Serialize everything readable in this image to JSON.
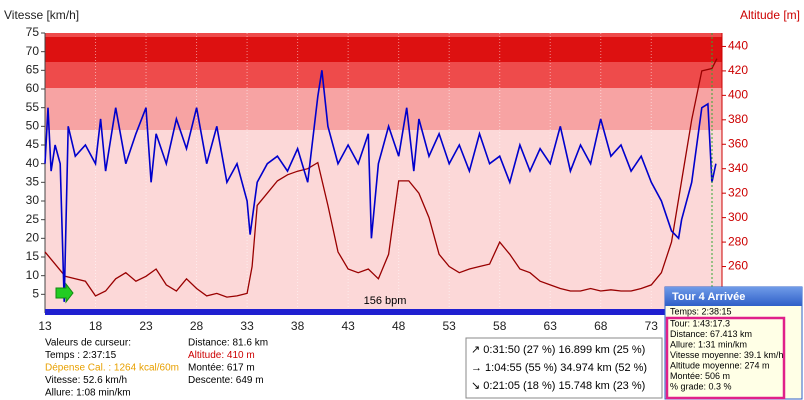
{
  "chart_data": {
    "type": "line",
    "ylabel": "Vitesse [km/h]",
    "y2label": "Altitude [m]",
    "xlim": [
      13,
      80
    ],
    "xticks": [
      13,
      18,
      23,
      28,
      33,
      38,
      43,
      48,
      53,
      58,
      63,
      68,
      73
    ],
    "ylim": [
      0,
      75
    ],
    "yticks": [
      5,
      10,
      15,
      20,
      25,
      30,
      35,
      40,
      45,
      50,
      55,
      60,
      65,
      70,
      75
    ],
    "y2lim": [
      222,
      451
    ],
    "y2ticks": [
      260,
      280,
      300,
      320,
      340,
      360,
      380,
      400,
      420,
      440
    ],
    "zone_label": "156 bpm",
    "series": [
      {
        "color": "#0000cc",
        "axis": "y",
        "x": [
          13,
          13.3,
          13.6,
          14,
          14.5,
          14.9,
          15.3,
          16,
          17,
          18,
          18.5,
          19,
          20,
          21,
          22,
          23,
          23.5,
          24,
          25,
          26,
          27,
          28,
          29,
          30,
          31,
          32,
          33,
          33.3,
          34,
          35,
          36,
          37,
          38,
          39,
          40,
          40.4,
          41,
          42,
          43,
          44,
          45,
          45.3,
          46,
          47,
          48,
          48.8,
          49.5,
          50,
          51,
          52,
          53,
          54,
          55,
          56,
          57,
          58,
          59,
          60,
          61,
          62,
          63,
          64,
          65,
          66,
          67,
          68,
          69,
          70,
          71,
          72,
          73,
          74,
          75,
          75.7,
          76,
          77,
          78,
          78.6,
          79,
          79.4
        ],
        "values": [
          40,
          55,
          38,
          45,
          40,
          3,
          50,
          42,
          45,
          40,
          52,
          38,
          55,
          40,
          48,
          55,
          35,
          48,
          40,
          52,
          44,
          55,
          40,
          50,
          35,
          40,
          30,
          21,
          35,
          40,
          42,
          38,
          44,
          35,
          58,
          65,
          50,
          40,
          45,
          40,
          48,
          20,
          40,
          50,
          42,
          55,
          38,
          52,
          42,
          48,
          40,
          45,
          38,
          48,
          40,
          42,
          35,
          45,
          38,
          44,
          40,
          50,
          38,
          45,
          40,
          52,
          42,
          45,
          38,
          42,
          35,
          30,
          22,
          20,
          25,
          35,
          55,
          56,
          35,
          40
        ]
      },
      {
        "color": "#990000",
        "axis": "y2",
        "x": [
          13,
          14,
          15,
          16,
          17,
          18,
          19,
          20,
          21,
          22,
          23,
          24,
          25,
          26,
          27,
          28,
          29,
          30,
          31,
          32,
          33,
          33.5,
          34,
          35,
          36,
          37,
          38,
          39,
          40,
          41,
          42,
          43,
          44,
          45,
          46,
          47,
          48,
          49,
          50,
          51,
          52,
          53,
          54,
          55,
          56,
          57,
          58,
          59,
          60,
          61,
          62,
          63,
          64,
          65,
          66,
          67,
          68,
          69,
          70,
          71,
          72,
          73,
          74,
          75,
          76,
          77,
          78,
          79,
          79.5
        ],
        "values": [
          272,
          262,
          252,
          250,
          248,
          236,
          240,
          250,
          255,
          248,
          252,
          258,
          245,
          240,
          250,
          242,
          236,
          238,
          235,
          236,
          238,
          260,
          310,
          320,
          330,
          335,
          338,
          340,
          345,
          310,
          272,
          258,
          255,
          258,
          250,
          270,
          330,
          330,
          320,
          300,
          270,
          260,
          255,
          258,
          260,
          262,
          280,
          270,
          258,
          255,
          248,
          245,
          242,
          240,
          240,
          242,
          240,
          241,
          240,
          240,
          242,
          245,
          255,
          280,
          330,
          380,
          420,
          422,
          430
        ]
      }
    ]
  },
  "cursor_panel": {
    "lines": [
      "Valeurs de curseur:",
      "Temps : 2:37:15",
      "Dépense Cal. : 1264 kcal/60m",
      "Vitesse: 52.6 km/h",
      "Allure: 1:08 min/km"
    ],
    "lines2": [
      "Distance: 81.6 km",
      "Altitude: 410 m",
      "Montée: 617 m",
      "Descente: 649 m"
    ]
  },
  "split_box": {
    "rows": [
      "↗ 0:31:50  (27 %)  16.899 km  (25 %)",
      "→ 1:04:55  (55 %)  34.974 km  (52 %)",
      "↘ 0:21:05  (18 %)  15.748 km  (23 %)"
    ]
  },
  "lap_tooltip": {
    "title": "Tour 4 Arrivée",
    "time": "Temps: 2:38:15",
    "lines": [
      "Tour: 1:43:17.3",
      "Distance: 67.413 km",
      "Allure: 1:31 min/km",
      "Vitesse moyenne: 39.1 km/h",
      "Altitude moyenne: 274 m",
      "Montée: 506 m",
      "% grade: 0.3 %"
    ]
  }
}
